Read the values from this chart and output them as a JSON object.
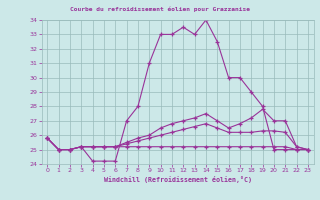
{
  "title": "Courbe du refroidissement éolien pour Grazzanise",
  "xlabel": "Windchill (Refroidissement éolien,°C)",
  "background_color": "#cce8e8",
  "grid_color": "#99bbbb",
  "line_color": "#993399",
  "xlim_min": -0.5,
  "xlim_max": 23.5,
  "ylim_min": 24,
  "ylim_max": 34,
  "yticks": [
    24,
    25,
    26,
    27,
    28,
    29,
    30,
    31,
    32,
    33,
    34
  ],
  "xticks": [
    0,
    1,
    2,
    3,
    4,
    5,
    6,
    7,
    8,
    9,
    10,
    11,
    12,
    13,
    14,
    15,
    16,
    17,
    18,
    19,
    20,
    21,
    22,
    23
  ],
  "hours": [
    0,
    1,
    2,
    3,
    4,
    5,
    6,
    7,
    8,
    9,
    10,
    11,
    12,
    13,
    14,
    15,
    16,
    17,
    18,
    19,
    20,
    21,
    22,
    23
  ],
  "line1": [
    25.8,
    25.0,
    25.0,
    25.2,
    24.2,
    24.2,
    24.2,
    27.0,
    28.0,
    31.0,
    33.0,
    33.0,
    33.5,
    33.0,
    34.0,
    32.5,
    30.0,
    30.0,
    29.0,
    28.0,
    25.0,
    25.0,
    25.0,
    25.0
  ],
  "line2": [
    25.8,
    25.0,
    25.0,
    25.2,
    25.2,
    25.2,
    25.2,
    25.5,
    25.8,
    26.0,
    26.5,
    26.8,
    27.0,
    27.2,
    27.5,
    27.0,
    26.5,
    26.8,
    27.2,
    27.8,
    27.0,
    27.0,
    25.2,
    25.0
  ],
  "line3": [
    25.8,
    25.0,
    25.0,
    25.2,
    25.2,
    25.2,
    25.2,
    25.4,
    25.6,
    25.8,
    26.0,
    26.2,
    26.4,
    26.6,
    26.8,
    26.5,
    26.2,
    26.2,
    26.2,
    26.3,
    26.3,
    26.2,
    25.2,
    25.0
  ],
  "line4": [
    25.8,
    25.0,
    25.0,
    25.2,
    25.2,
    25.2,
    25.2,
    25.2,
    25.2,
    25.2,
    25.2,
    25.2,
    25.2,
    25.2,
    25.2,
    25.2,
    25.2,
    25.2,
    25.2,
    25.2,
    25.2,
    25.2,
    25.0,
    25.0
  ]
}
